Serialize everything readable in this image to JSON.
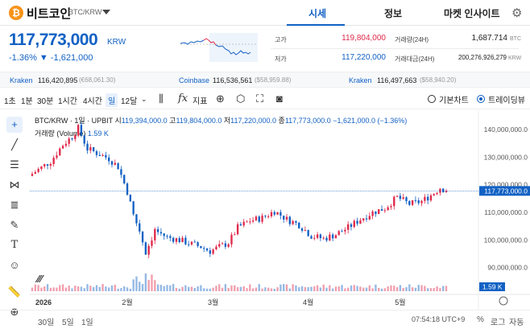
{
  "header": {
    "coin_logo": "₿",
    "coin_name": "비트코인",
    "pair": "BTC/KRW",
    "tabs": [
      "시세",
      "정보",
      "마켓 인사이트"
    ],
    "active_tab": "시세"
  },
  "price": {
    "current": "117,773,000",
    "unit": "KRW",
    "change_pct": "-1.36%",
    "change_abs": "▼ -1,621,000"
  },
  "stats": {
    "high_label": "고가",
    "high_value": "119,804,000",
    "low_label": "저가",
    "low_value": "117,220,000",
    "vol_label": "거래량(24H)",
    "vol_value": "1,687.714",
    "vol_unit": "BTC",
    "amt_label": "거래대금(24H)",
    "amt_value": "200,276,926,279",
    "amt_unit": "KRW"
  },
  "exchanges": [
    {
      "name": "Kraken",
      "value": "116,420,895",
      "usd": "(€68,061.30)"
    },
    {
      "name": "Coinbase",
      "value": "116,536,561",
      "usd": "($58,959.88)"
    },
    {
      "name": "Kraken",
      "value": "116,497,663",
      "usd": "($58,940.20)"
    }
  ],
  "toolbar": {
    "intervals": [
      "1초",
      "1분",
      "30분",
      "1시간",
      "4시간",
      "일",
      "12달"
    ],
    "active_interval": "일",
    "indicator_label": "지표",
    "basic_chart": "기본차트",
    "tradingview": "트레이딩뷰"
  },
  "legend": {
    "symbol": "BTC/KRW · 1일 · UPBIT",
    "o_label": "시",
    "o_value": "119,394,000.0",
    "h_label": "고",
    "h_value": "119,804,000.0",
    "l_label": "저",
    "l_value": "117,220,000.0",
    "c_label": "종",
    "c_value": "117,773,000.0",
    "chg": "−1,621,000.0 (−1.36%)",
    "volume_label": "거래량 (Volume)",
    "volume_value": "1.59 K"
  },
  "chart_data": {
    "type": "candlestick",
    "y_ticks": [
      "140,000,000.0",
      "130,000,000.0",
      "120,000,000.0",
      "110,000,000.0",
      "100,000,000.0",
      "90,000,000.0"
    ],
    "y_tick_values": [
      140000000,
      130000000,
      120000000,
      110000000,
      100000000,
      90000000
    ],
    "ylim": [
      83500000,
      147000000
    ],
    "x_ticks": [
      "2026",
      "2월",
      "3월",
      "4월",
      "5월"
    ],
    "x_tick_days": [
      0,
      31,
      59,
      90,
      120
    ],
    "last_price_label": "117,773,000.0",
    "last_price": 117773000,
    "volume_tag": "1.59 K",
    "up_color": "#e0294a",
    "down_color": "#1261c4",
    "close_path": [
      [
        0,
        124000000
      ],
      [
        6,
        128500000
      ],
      [
        10,
        134500000
      ],
      [
        13,
        137500000
      ],
      [
        15,
        140500000
      ],
      [
        18,
        133000000
      ],
      [
        21,
        131500000
      ],
      [
        25,
        129500000
      ],
      [
        28,
        126500000
      ],
      [
        31,
        117500000
      ],
      [
        33,
        109000000
      ],
      [
        35,
        103500000
      ],
      [
        37,
        95500000
      ],
      [
        40,
        103500000
      ],
      [
        44,
        101000000
      ],
      [
        48,
        100000000
      ],
      [
        52,
        98500000
      ],
      [
        55,
        97500000
      ],
      [
        58,
        96000000
      ],
      [
        61,
        97500000
      ],
      [
        64,
        99000000
      ],
      [
        67,
        104500000
      ],
      [
        71,
        107000000
      ],
      [
        75,
        108000000
      ],
      [
        79,
        110500000
      ],
      [
        83,
        107500000
      ],
      [
        87,
        105500000
      ],
      [
        91,
        101500000
      ],
      [
        95,
        100500000
      ],
      [
        99,
        102000000
      ],
      [
        103,
        104500000
      ],
      [
        107,
        107500000
      ],
      [
        111,
        110000000
      ],
      [
        115,
        111500000
      ],
      [
        119,
        115500000
      ],
      [
        123,
        113000000
      ],
      [
        127,
        114000000
      ],
      [
        131,
        117000000
      ],
      [
        133,
        119000000
      ],
      [
        135,
        117773000
      ]
    ]
  },
  "range_buttons": [
    "30일",
    "5일",
    "1일"
  ],
  "clock": "07:54:18 UTC+9",
  "scale_buttons": [
    "%",
    "로그",
    "자동"
  ]
}
